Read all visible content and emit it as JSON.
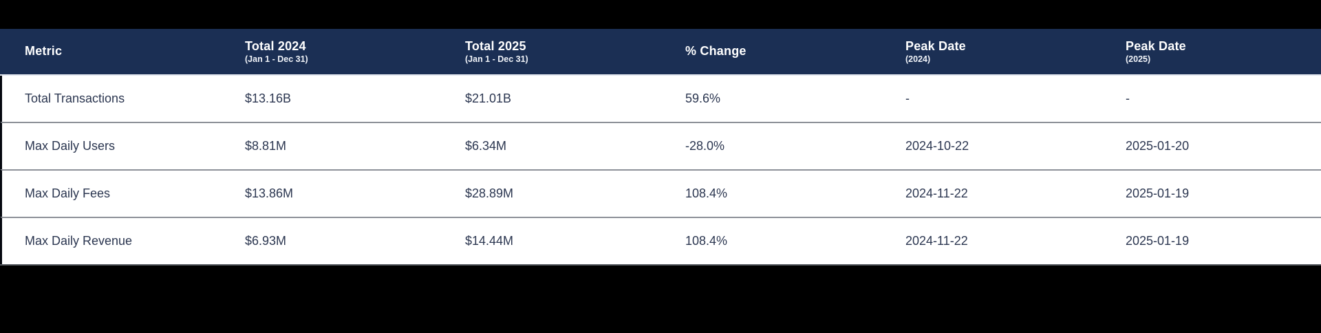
{
  "page": {
    "background_color": "#000000"
  },
  "chart_data": {
    "type": "table",
    "header_bg_color": "#1b2f54",
    "header_text_color": "#ffffff",
    "body_text_color": "#2b3650",
    "row_divider_color": "#8d9198",
    "columns": [
      {
        "label": "Metric",
        "sublabel": ""
      },
      {
        "label": "Total 2024",
        "sublabel": "(Jan 1 - Dec 31)"
      },
      {
        "label": "Total 2025",
        "sublabel": "(Jan 1 - Dec 31)"
      },
      {
        "label": "% Change",
        "sublabel": ""
      },
      {
        "label": "Peak Date",
        "sublabel": "(2024)"
      },
      {
        "label": "Peak Date",
        "sublabel": "(2025)"
      }
    ],
    "rows": [
      {
        "metric": "Total Transactions",
        "total_2024": "$13.16B",
        "total_2025": "$21.01B",
        "pct_change": "59.6%",
        "peak_2024": "-",
        "peak_2025": "-"
      },
      {
        "metric": "Max Daily Users",
        "total_2024": "$8.81M",
        "total_2025": "$6.34M",
        "pct_change": "-28.0%",
        "peak_2024": "2024-10-22",
        "peak_2025": "2025-01-20"
      },
      {
        "metric": "Max Daily Fees",
        "total_2024": "$13.86M",
        "total_2025": "$28.89M",
        "pct_change": "108.4%",
        "peak_2024": "2024-11-22",
        "peak_2025": "2025-01-19"
      },
      {
        "metric": "Max Daily Revenue",
        "total_2024": "$6.93M",
        "total_2025": "$14.44M",
        "pct_change": "108.4%",
        "peak_2024": "2024-11-22",
        "peak_2025": "2025-01-19"
      }
    ]
  }
}
